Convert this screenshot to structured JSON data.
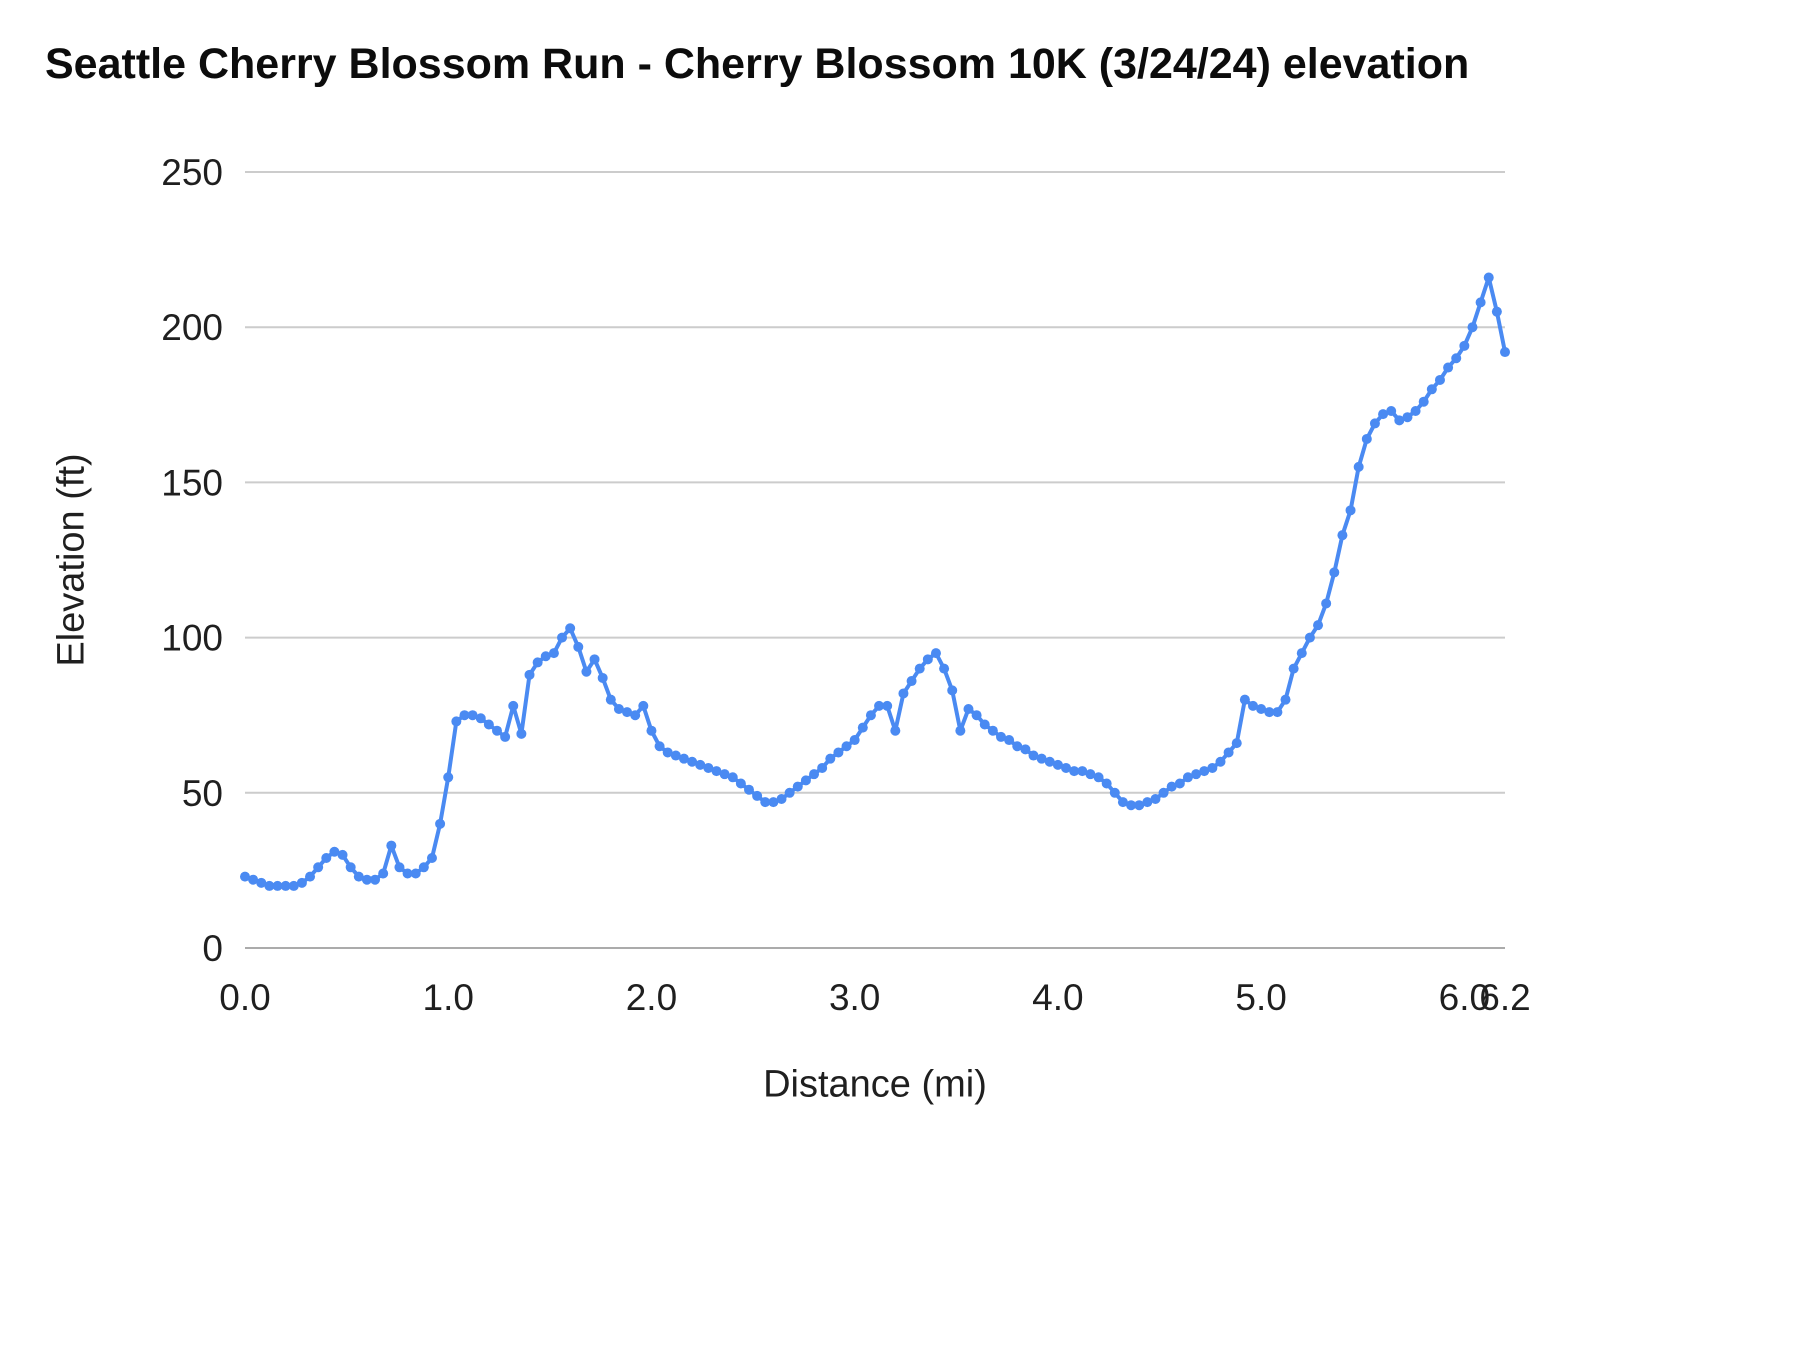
{
  "chart_data": {
    "type": "line",
    "title": "Seattle Cherry Blossom Run - Cherry Blossom 10K (3/24/24) elevation",
    "xlabel": "Distance (mi)",
    "ylabel": "Elevation (ft)",
    "xlim": [
      0,
      6.2
    ],
    "ylim": [
      0,
      250
    ],
    "grid": "horizontal",
    "legend": "none",
    "marker": "circle",
    "line_color": "#4a8af2",
    "gridline_color": "#cccccc",
    "zero_line_color": "#ababab",
    "tick_label_color": "#1f1f1f",
    "xticks": {
      "values": [
        0,
        1,
        2,
        3,
        4,
        5,
        6,
        6.2
      ],
      "labels": [
        "0.0",
        "1.0",
        "2.0",
        "3.0",
        "4.0",
        "5.0",
        "6.0",
        "6.2"
      ]
    },
    "yticks": {
      "values": [
        0,
        50,
        100,
        150,
        200,
        250
      ],
      "labels": [
        "0",
        "50",
        "100",
        "150",
        "200",
        "250"
      ]
    },
    "series": [
      {
        "name": "elevation",
        "x": [
          0,
          0.04,
          0.08,
          0.12,
          0.16,
          0.2,
          0.24,
          0.28,
          0.32,
          0.36,
          0.4,
          0.44,
          0.48,
          0.52,
          0.56,
          0.6,
          0.64,
          0.68,
          0.72,
          0.76,
          0.8,
          0.84,
          0.88,
          0.92,
          0.96,
          1,
          1.04,
          1.08,
          1.12,
          1.16,
          1.2,
          1.24,
          1.28,
          1.32,
          1.36,
          1.4,
          1.44,
          1.48,
          1.52,
          1.56,
          1.6,
          1.64,
          1.68,
          1.72,
          1.76,
          1.8,
          1.84,
          1.88,
          1.92,
          1.96,
          2,
          2.04,
          2.08,
          2.12,
          2.16,
          2.2,
          2.24,
          2.28,
          2.32,
          2.36,
          2.4,
          2.44,
          2.48,
          2.52,
          2.56,
          2.6,
          2.64,
          2.68,
          2.72,
          2.76,
          2.8,
          2.84,
          2.88,
          2.92,
          2.96,
          3,
          3.04,
          3.08,
          3.12,
          3.16,
          3.2,
          3.24,
          3.28,
          3.32,
          3.36,
          3.4,
          3.44,
          3.48,
          3.52,
          3.56,
          3.6,
          3.64,
          3.68,
          3.72,
          3.76,
          3.8,
          3.84,
          3.88,
          3.92,
          3.96,
          4,
          4.04,
          4.08,
          4.12,
          4.16,
          4.2,
          4.24,
          4.28,
          4.32,
          4.36,
          4.4,
          4.44,
          4.48,
          4.52,
          4.56,
          4.6,
          4.64,
          4.68,
          4.72,
          4.76,
          4.8,
          4.84,
          4.88,
          4.92,
          4.96,
          5,
          5.04,
          5.08,
          5.12,
          5.16,
          5.2,
          5.24,
          5.28,
          5.32,
          5.36,
          5.4,
          5.44,
          5.48,
          5.52,
          5.56,
          5.6,
          5.64,
          5.68,
          5.72,
          5.76,
          5.8,
          5.84,
          5.88,
          5.92,
          5.96,
          6,
          6.04,
          6.08,
          6.12,
          6.16,
          6.2
        ],
        "y": [
          23,
          22,
          21,
          20,
          20,
          20,
          20,
          21,
          23,
          26,
          29,
          31,
          30,
          26,
          23,
          22,
          22,
          24,
          33,
          26,
          24,
          24,
          26,
          29,
          40,
          55,
          73,
          75,
          75,
          74,
          72,
          70,
          68,
          78,
          69,
          88,
          92,
          94,
          95,
          100,
          103,
          97,
          89,
          93,
          87,
          80,
          77,
          76,
          75,
          78,
          70,
          65,
          63,
          62,
          61,
          60,
          59,
          58,
          57,
          56,
          55,
          53,
          51,
          49,
          47,
          47,
          48,
          50,
          52,
          54,
          56,
          58,
          61,
          63,
          65,
          67,
          71,
          75,
          78,
          78,
          70,
          82,
          86,
          90,
          93,
          95,
          90,
          83,
          70,
          77,
          75,
          72,
          70,
          68,
          67,
          65,
          64,
          62,
          61,
          60,
          59,
          58,
          57,
          57,
          56,
          55,
          53,
          50,
          47,
          46,
          46,
          47,
          48,
          50,
          52,
          53,
          55,
          56,
          57,
          58,
          60,
          63,
          66,
          80,
          78,
          77,
          76,
          76,
          80,
          90,
          95,
          100,
          104,
          111,
          121,
          133,
          141,
          155,
          164,
          169,
          172,
          173,
          170,
          171,
          173,
          176,
          180,
          183,
          187,
          190,
          194,
          200,
          208,
          216,
          205,
          192
        ]
      }
    ]
  }
}
